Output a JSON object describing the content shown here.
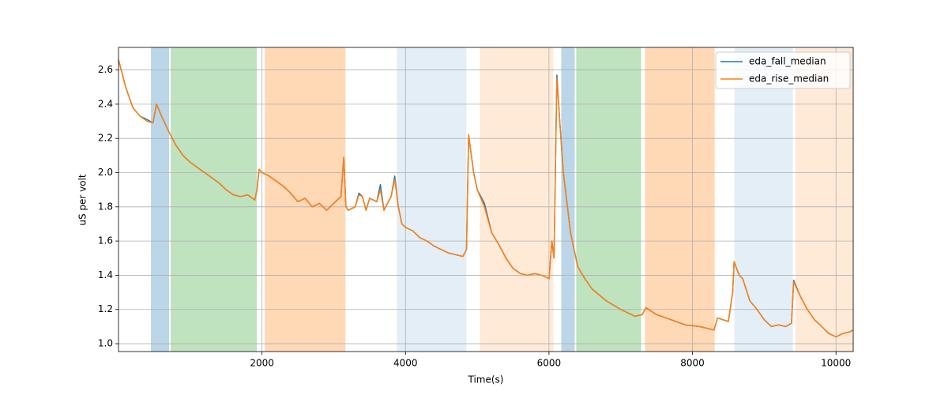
{
  "chart_data": {
    "type": "line",
    "x_label": "Time(s)",
    "y_label": "uS per volt",
    "xlim": [
      0,
      10240
    ],
    "ylim": [
      0.954,
      2.732
    ],
    "xticks": [
      2000,
      4000,
      6000,
      8000,
      10000
    ],
    "yticks": [
      {
        "value": 1,
        "label": "1.0"
      },
      1.2,
      1.4,
      1.6,
      1.8,
      {
        "value": 2,
        "label": "2.0"
      },
      2.2,
      2.4,
      2.6
    ],
    "grid": true,
    "legend": "upper right",
    "spans": [
      {
        "start": 452,
        "end": 705,
        "color": "#1f77b4",
        "opacity": 0.3
      },
      {
        "start": 727,
        "end": 1928,
        "color": "#2ca02c",
        "opacity": 0.3
      },
      {
        "start": 2039,
        "end": 3163,
        "color": "#ff7f0e",
        "opacity": 0.3
      },
      {
        "start": 3879,
        "end": 4848,
        "color": "#1f77b4",
        "opacity": 0.12
      },
      {
        "start": 5036,
        "end": 6061,
        "color": "#ff7f0e",
        "opacity": 0.16
      },
      {
        "start": 6171,
        "end": 6358,
        "color": "#1f77b4",
        "opacity": 0.3
      },
      {
        "start": 6380,
        "end": 7284,
        "color": "#2ca02c",
        "opacity": 0.3
      },
      {
        "start": 7339,
        "end": 8309,
        "color": "#ff7f0e",
        "opacity": 0.3
      },
      {
        "start": 8584,
        "end": 9399,
        "color": "#1f77b4",
        "opacity": 0.12
      },
      {
        "start": 9433,
        "end": 10248,
        "color": "#ff7f0e",
        "opacity": 0.16
      }
    ],
    "x": [
      0,
      100,
      200,
      300,
      400,
      480,
      530,
      600,
      700,
      800,
      900,
      1000,
      1100,
      1200,
      1300,
      1400,
      1500,
      1600,
      1700,
      1800,
      1900,
      1930,
      1960,
      2000,
      2100,
      2200,
      2300,
      2400,
      2500,
      2600,
      2700,
      2800,
      2900,
      3000,
      3100,
      3140,
      3170,
      3200,
      3300,
      3350,
      3400,
      3450,
      3500,
      3600,
      3650,
      3700,
      3800,
      3850,
      3900,
      3950,
      4000,
      4100,
      4200,
      4300,
      4400,
      4500,
      4600,
      4700,
      4800,
      4850,
      4880,
      4950,
      5000,
      5100,
      5200,
      5300,
      5400,
      5500,
      5600,
      5700,
      5800,
      5900,
      6000,
      6040,
      6070,
      6110,
      6150,
      6200,
      6300,
      6400,
      6500,
      6600,
      6800,
      7000,
      7200,
      7300,
      7350,
      7500,
      7700,
      7900,
      8100,
      8200,
      8300,
      8350,
      8500,
      8560,
      8580,
      8650,
      8700,
      8800,
      8900,
      9000,
      9100,
      9200,
      9300,
      9380,
      9410,
      9500,
      9600,
      9700,
      9800,
      9900,
      10000,
      10100,
      10200,
      10230
    ],
    "series": [
      {
        "name": "eda_fall_median",
        "color": "#1f77b4",
        "values": [
          2.66,
          2.5,
          2.38,
          2.33,
          2.31,
          2.29,
          2.4,
          2.33,
          2.24,
          2.16,
          2.1,
          2.06,
          2.03,
          2.0,
          1.97,
          1.94,
          1.9,
          1.87,
          1.86,
          1.87,
          1.84,
          1.9,
          2.02,
          2.0,
          1.98,
          1.95,
          1.92,
          1.88,
          1.83,
          1.85,
          1.8,
          1.82,
          1.78,
          1.82,
          1.86,
          2.09,
          1.8,
          1.78,
          1.8,
          1.88,
          1.86,
          1.78,
          1.85,
          1.83,
          1.93,
          1.78,
          1.86,
          1.98,
          1.8,
          1.7,
          1.68,
          1.66,
          1.62,
          1.6,
          1.57,
          1.55,
          1.53,
          1.52,
          1.51,
          1.55,
          2.22,
          2.0,
          1.9,
          1.82,
          1.65,
          1.58,
          1.5,
          1.44,
          1.41,
          1.4,
          1.41,
          1.4,
          1.38,
          1.6,
          1.5,
          2.57,
          2.3,
          2.0,
          1.65,
          1.45,
          1.38,
          1.32,
          1.25,
          1.2,
          1.16,
          1.17,
          1.21,
          1.17,
          1.14,
          1.11,
          1.1,
          1.09,
          1.08,
          1.15,
          1.13,
          1.3,
          1.48,
          1.4,
          1.38,
          1.25,
          1.2,
          1.14,
          1.1,
          1.11,
          1.1,
          1.12,
          1.37,
          1.28,
          1.2,
          1.14,
          1.1,
          1.06,
          1.04,
          1.06,
          1.07,
          1.08
        ]
      },
      {
        "name": "eda_rise_median",
        "color": "#ff7f0e",
        "values": [
          2.66,
          2.5,
          2.38,
          2.33,
          2.3,
          2.29,
          2.4,
          2.33,
          2.24,
          2.16,
          2.1,
          2.06,
          2.03,
          2.0,
          1.97,
          1.94,
          1.9,
          1.87,
          1.86,
          1.87,
          1.84,
          1.9,
          2.02,
          2.0,
          1.98,
          1.95,
          1.92,
          1.88,
          1.83,
          1.85,
          1.8,
          1.82,
          1.78,
          1.82,
          1.86,
          2.09,
          1.8,
          1.78,
          1.8,
          1.87,
          1.86,
          1.78,
          1.85,
          1.83,
          1.9,
          1.78,
          1.86,
          1.96,
          1.8,
          1.7,
          1.68,
          1.66,
          1.62,
          1.6,
          1.57,
          1.55,
          1.53,
          1.52,
          1.51,
          1.55,
          2.22,
          2.0,
          1.9,
          1.8,
          1.65,
          1.58,
          1.5,
          1.44,
          1.41,
          1.4,
          1.41,
          1.4,
          1.38,
          1.6,
          1.5,
          2.55,
          2.3,
          2.0,
          1.65,
          1.45,
          1.38,
          1.32,
          1.25,
          1.2,
          1.16,
          1.17,
          1.21,
          1.17,
          1.14,
          1.11,
          1.1,
          1.09,
          1.08,
          1.15,
          1.13,
          1.3,
          1.48,
          1.4,
          1.38,
          1.25,
          1.2,
          1.14,
          1.1,
          1.11,
          1.1,
          1.12,
          1.36,
          1.28,
          1.2,
          1.14,
          1.1,
          1.06,
          1.04,
          1.06,
          1.07,
          1.08
        ]
      }
    ]
  }
}
